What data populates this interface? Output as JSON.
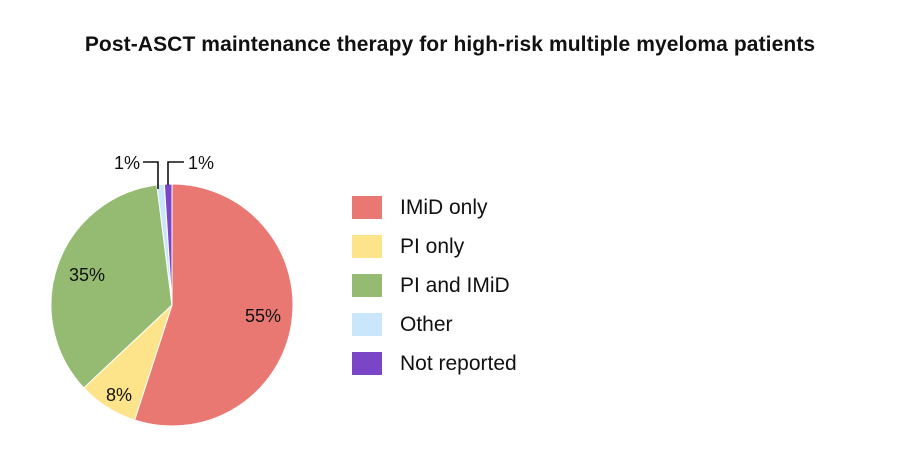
{
  "chart_data": {
    "type": "pie",
    "title": "Post-ASCT maintenance therapy for high-risk multiple myeloma patients",
    "slices": [
      {
        "label": "IMiD only",
        "value": 55,
        "display": "55%",
        "color": "#e97872"
      },
      {
        "label": "PI only",
        "value": 8,
        "display": "8%",
        "color": "#fde48a"
      },
      {
        "label": "PI and IMiD",
        "value": 35,
        "display": "35%",
        "color": "#95ba72"
      },
      {
        "label": "Other",
        "value": 1,
        "display": "1%",
        "color": "#c9e6fa"
      },
      {
        "label": "Not reported",
        "value": 1,
        "display": "1%",
        "color": "#7b45c7"
      }
    ],
    "legend_position": "right",
    "start_angle": "top",
    "direction": "clockwise"
  }
}
